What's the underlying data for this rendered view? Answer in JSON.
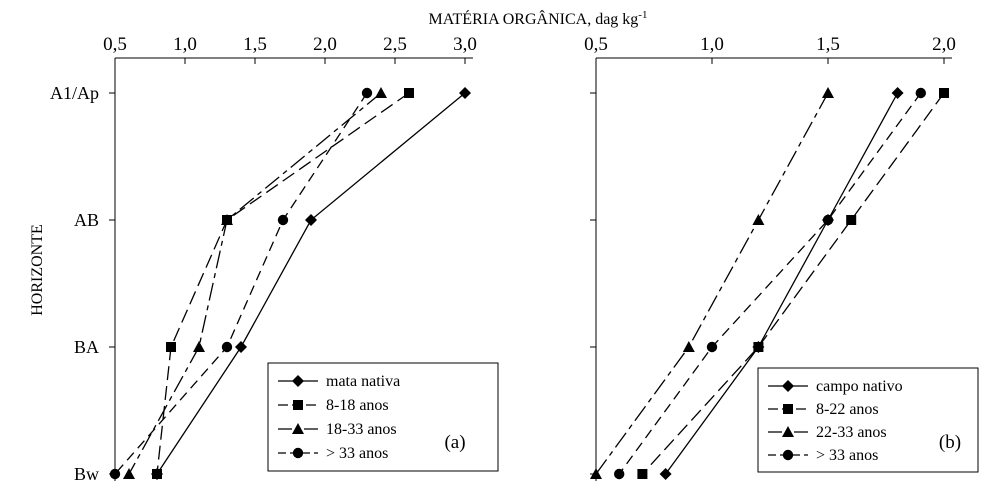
{
  "chart_data": [
    {
      "type": "line",
      "orientation": "horizontal-profile",
      "panel_label": "(a)",
      "categories": [
        "A1/Ap",
        "AB",
        "BA",
        "Bw"
      ],
      "xlim": [
        0.5,
        3.0
      ],
      "xticks": [
        "0,5",
        "1,0",
        "1,5",
        "2,0",
        "2,5",
        "3,0"
      ],
      "xtick_values": [
        0.5,
        1.0,
        1.5,
        2.0,
        2.5,
        3.0
      ],
      "legend_position": "bottom-right",
      "series": [
        {
          "name": "mata nativa",
          "marker": "diamond",
          "dash": "solid",
          "values": [
            3.0,
            1.9,
            1.4,
            0.8
          ]
        },
        {
          "name": "8-18 anos",
          "marker": "square",
          "dash": "long",
          "values": [
            2.6,
            1.3,
            0.9,
            0.8
          ]
        },
        {
          "name": "18-33 anos",
          "marker": "triangle",
          "dash": "longshort",
          "values": [
            2.4,
            1.3,
            1.1,
            0.6
          ]
        },
        {
          "name": "> 33 anos",
          "marker": "circle",
          "dash": "medium",
          "values": [
            2.3,
            1.7,
            1.3,
            0.5
          ]
        }
      ]
    },
    {
      "type": "line",
      "orientation": "horizontal-profile",
      "panel_label": "(b)",
      "categories": [
        "A1/Ap",
        "AB",
        "BA",
        "Bw"
      ],
      "xlim": [
        0.5,
        2.0
      ],
      "xticks": [
        "0,5",
        "1,0",
        "1,5",
        "2,0"
      ],
      "xtick_values": [
        0.5,
        1.0,
        1.5,
        2.0
      ],
      "legend_position": "bottom-right",
      "series": [
        {
          "name": "campo nativo",
          "marker": "diamond",
          "dash": "solid",
          "values": [
            1.8,
            1.5,
            1.2,
            0.8
          ]
        },
        {
          "name": "8-22 anos",
          "marker": "square",
          "dash": "long",
          "values": [
            2.0,
            1.6,
            1.2,
            0.7
          ]
        },
        {
          "name": "22-33 anos",
          "marker": "triangle",
          "dash": "longshort",
          "values": [
            1.5,
            1.2,
            0.9,
            0.5
          ]
        },
        {
          "name": "> 33 anos",
          "marker": "circle",
          "dash": "medium",
          "values": [
            1.9,
            1.5,
            1.0,
            0.6
          ]
        }
      ]
    }
  ],
  "labels": {
    "x_title": "MATÉRIA ORGÂNICA, dag kg",
    "x_title_sup": "-1",
    "y_title": "HORIZONTE"
  }
}
